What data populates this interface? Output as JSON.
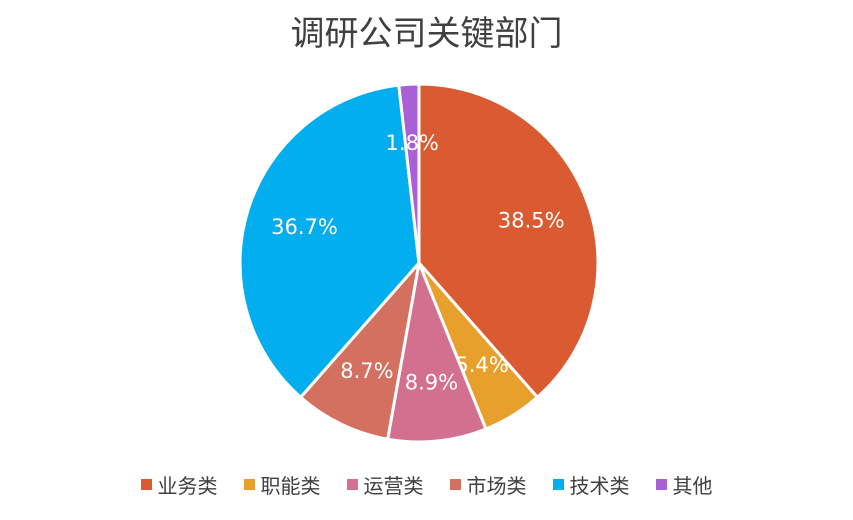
{
  "chart_data": {
    "type": "pie",
    "title": "调研公司关键部门",
    "categories": [
      "业务类",
      "职能类",
      "运营类",
      "市场类",
      "技术类",
      "其他"
    ],
    "values": [
      38.5,
      5.4,
      8.9,
      8.7,
      36.7,
      1.8
    ],
    "labels": [
      "38.5%",
      "5.4%",
      "8.9%",
      "8.7%",
      "36.7%",
      "1.8%"
    ],
    "colors": [
      "#DA5A32",
      "#E8A02C",
      "#D4708F",
      "#D47060",
      "#03AEEF",
      "#A95FD6"
    ],
    "legend_position": "bottom",
    "start_angle": "top, clockwise"
  }
}
